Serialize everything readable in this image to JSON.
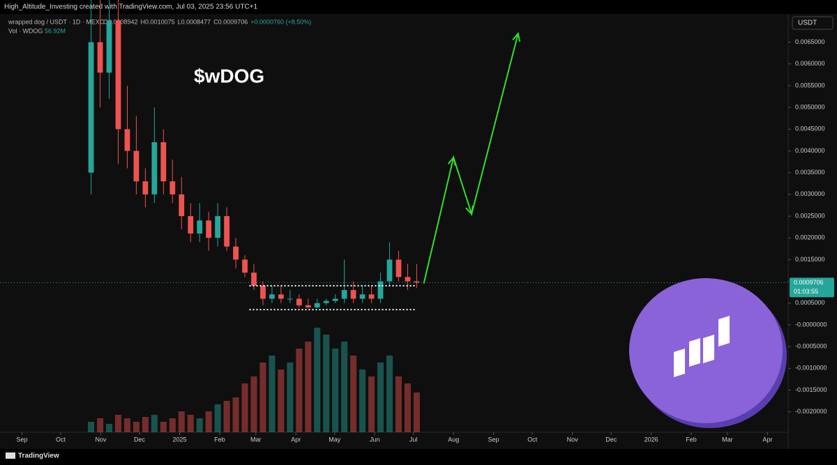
{
  "header": {
    "credit": "High_Altitude_Investing created with TradingView.com, Jul 03, 2025 23:56 UTC+1",
    "symbol": "wrapped dog / USDT · 1D · MEXC",
    "ohlc": [
      "O0.0008942",
      "H0.0010075",
      "L0.0008477",
      "C0.0009706",
      "+0.0000760 (+8.50%)"
    ],
    "volume_label": "Vol · WDOG",
    "volume_value": "56.92M",
    "currency": "USDT"
  },
  "footer": {
    "brand": "TradingView"
  },
  "chart_data": {
    "type": "candlestick",
    "title": "$wDOG",
    "up_color": "#26a69a",
    "down_color": "#ef5350",
    "x": [
      "2024-10-21",
      "2024-10-28",
      "2024-11-04",
      "2024-11-11",
      "2024-11-18",
      "2024-11-25",
      "2024-12-02",
      "2024-12-09",
      "2024-12-16",
      "2024-12-23",
      "2024-12-30",
      "2025-01-06",
      "2025-01-13",
      "2025-01-20",
      "2025-01-27",
      "2025-02-03",
      "2025-02-10",
      "2025-02-17",
      "2025-02-24",
      "2025-03-03",
      "2025-03-10",
      "2025-03-17",
      "2025-03-24",
      "2025-03-31",
      "2025-04-07",
      "2025-04-14",
      "2025-04-21",
      "2025-04-28",
      "2025-05-05",
      "2025-05-12",
      "2025-05-19",
      "2025-05-26",
      "2025-06-02",
      "2025-06-09",
      "2025-06-16",
      "2025-06-23",
      "2025-06-30"
    ],
    "open": [
      0.0035,
      0.0065,
      0.0058,
      0.007,
      0.0045,
      0.004,
      0.0033,
      0.003,
      0.0042,
      0.0033,
      0.003,
      0.0025,
      0.0021,
      0.0024,
      0.002,
      0.0025,
      0.0018,
      0.0015,
      0.0012,
      0.0009,
      0.0006,
      0.0007,
      0.0006,
      0.0006,
      0.00045,
      0.0004,
      0.0005,
      0.00055,
      0.0006,
      0.0008,
      0.0006,
      0.0007,
      0.0006,
      0.001,
      0.0015,
      0.0011,
      0.001
    ],
    "high": [
      0.0075,
      0.0075,
      0.0075,
      0.0075,
      0.0055,
      0.0048,
      0.0036,
      0.005,
      0.0045,
      0.0038,
      0.0034,
      0.0028,
      0.0028,
      0.0026,
      0.0028,
      0.0027,
      0.002,
      0.0016,
      0.0014,
      0.001,
      0.0009,
      0.0009,
      0.0008,
      0.0007,
      0.0006,
      0.0006,
      0.0006,
      0.0007,
      0.0015,
      0.001,
      0.0009,
      0.0009,
      0.0012,
      0.0019,
      0.0017,
      0.0014,
      0.0014
    ],
    "low": [
      0.003,
      0.005,
      0.0052,
      0.0037,
      0.0036,
      0.003,
      0.0027,
      0.0028,
      0.003,
      0.0028,
      0.0022,
      0.0019,
      0.0019,
      0.0017,
      0.0018,
      0.0017,
      0.0013,
      0.0011,
      0.0008,
      0.00045,
      0.0005,
      0.0005,
      0.0005,
      0.0004,
      0.00038,
      0.00038,
      0.00045,
      0.0005,
      0.0005,
      0.0005,
      0.0005,
      0.0005,
      0.0005,
      0.0009,
      0.001,
      0.0008,
      0.00085
    ],
    "close": [
      0.0065,
      0.0058,
      0.007,
      0.0045,
      0.004,
      0.0033,
      0.003,
      0.0042,
      0.0033,
      0.003,
      0.0025,
      0.0021,
      0.0024,
      0.002,
      0.0025,
      0.0018,
      0.0015,
      0.0012,
      0.0009,
      0.0006,
      0.0007,
      0.0006,
      0.0006,
      0.00045,
      0.0004,
      0.0005,
      0.00055,
      0.0006,
      0.0008,
      0.0006,
      0.0007,
      0.0006,
      0.001,
      0.0015,
      0.0011,
      0.001,
      0.0009706
    ],
    "volume": [
      15000000,
      20000000,
      12000000,
      25000000,
      20000000,
      15000000,
      22000000,
      25000000,
      15000000,
      20000000,
      30000000,
      25000000,
      20000000,
      30000000,
      40000000,
      45000000,
      50000000,
      70000000,
      80000000,
      100000000,
      110000000,
      90000000,
      100000000,
      120000000,
      130000000,
      150000000,
      140000000,
      120000000,
      130000000,
      110000000,
      90000000,
      80000000,
      100000000,
      110000000,
      80000000,
      70000000,
      56920000
    ],
    "last_price": 0.0009706,
    "countdown": "01:03:55",
    "levels": [
      {
        "value": 0.0009,
        "from": "2025-02-24",
        "to": "2025-07-02"
      },
      {
        "value": 0.00035,
        "from": "2025-02-24",
        "to": "2025-07-02"
      }
    ],
    "projection": {
      "color": "#2ee02e",
      "x": [
        "2025-07-09",
        "2025-08-01",
        "2025-08-15",
        "2025-09-20"
      ],
      "y": [
        0.00095,
        0.00385,
        0.00255,
        0.0067
      ]
    },
    "xlim": [
      "2024-08-15",
      "2026-04-17"
    ],
    "xticks": [
      {
        "value": "2024-09-01",
        "label": "Sep"
      },
      {
        "value": "2024-10-01",
        "label": "Oct"
      },
      {
        "value": "2024-11-01",
        "label": "Nov"
      },
      {
        "value": "2024-12-01",
        "label": "Dec"
      },
      {
        "value": "2025-01-01",
        "label": "2025"
      },
      {
        "value": "2025-02-01",
        "label": "Feb"
      },
      {
        "value": "2025-03-01",
        "label": "Mar"
      },
      {
        "value": "2025-04-01",
        "label": "Apr"
      },
      {
        "value": "2025-05-01",
        "label": "May"
      },
      {
        "value": "2025-06-01",
        "label": "Jun"
      },
      {
        "value": "2025-07-01",
        "label": "Jul"
      },
      {
        "value": "2025-08-01",
        "label": "Aug"
      },
      {
        "value": "2025-09-01",
        "label": "Sep"
      },
      {
        "value": "2025-10-01",
        "label": "Oct"
      },
      {
        "value": "2025-11-01",
        "label": "Nov"
      },
      {
        "value": "2025-12-01",
        "label": "Dec"
      },
      {
        "value": "2026-01-01",
        "label": "2026"
      },
      {
        "value": "2026-02-01",
        "label": "Feb"
      },
      {
        "value": "2026-03-01",
        "label": "Mar"
      },
      {
        "value": "2026-04-01",
        "label": "Apr"
      }
    ],
    "ylim": [
      -0.00247,
      0.00715
    ],
    "yticks": [
      {
        "value": 0.0065,
        "label": "0.0065000"
      },
      {
        "value": 0.006,
        "label": "0.0060000"
      },
      {
        "value": 0.0055,
        "label": "0.0055000"
      },
      {
        "value": 0.005,
        "label": "0.0050000"
      },
      {
        "value": 0.0045,
        "label": "0.0045000"
      },
      {
        "value": 0.004,
        "label": "0.0040000"
      },
      {
        "value": 0.0035,
        "label": "0.0035000"
      },
      {
        "value": 0.003,
        "label": "0.0030000"
      },
      {
        "value": 0.0025,
        "label": "0.0025000"
      },
      {
        "value": 0.002,
        "label": "0.0020000"
      },
      {
        "value": 0.0015,
        "label": "0.0015000"
      },
      {
        "value": 0.001,
        "label": "0.0010000"
      },
      {
        "value": 0.0005,
        "label": "0.0005000"
      },
      {
        "value": 0,
        "label": "-0.0000000"
      },
      {
        "value": -0.0005,
        "label": "-0.0005000"
      },
      {
        "value": -0.001,
        "label": "-0.0010000"
      },
      {
        "value": -0.0015,
        "label": "-0.0015000"
      },
      {
        "value": -0.002,
        "label": "-0.0020000"
      }
    ]
  }
}
